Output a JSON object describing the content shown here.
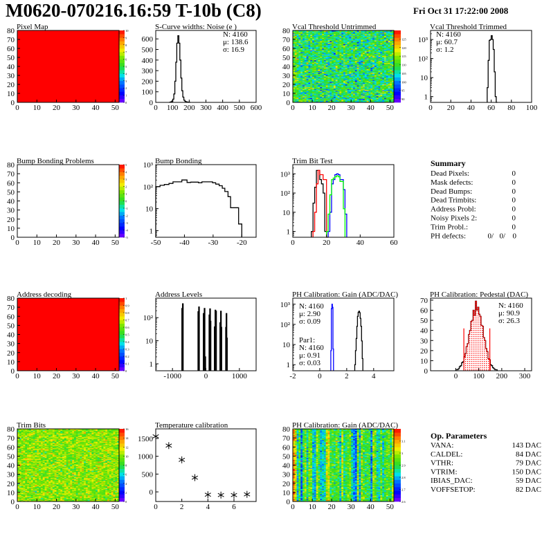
{
  "header": {
    "title": "M0620-070216.16:59 T-10b (C8)",
    "date": "Fri Oct 31 17:22:00 2008"
  },
  "colors": {
    "black": "#000000",
    "red": "#ff0000",
    "blue": "#0000ff",
    "green": "#00ff00"
  },
  "chart_data": [
    {
      "type": "heatmap",
      "title": "Pixel Map",
      "xlim": [
        0,
        52
      ],
      "ylim": [
        0,
        80
      ],
      "xticks": [
        0,
        10,
        20,
        30,
        40,
        50
      ],
      "yticks": [
        0,
        10,
        20,
        30,
        40,
        50,
        60,
        70,
        80
      ],
      "zlim": [
        0,
        10
      ],
      "zticks": [
        0,
        1,
        2,
        3,
        4,
        5,
        6,
        7,
        8,
        9,
        10
      ],
      "uniform_value": 10
    },
    {
      "type": "bar",
      "title": "S-Curve widths: Noise (e )",
      "xlim": [
        0,
        600
      ],
      "ylim": [
        0,
        680
      ],
      "log_y": false,
      "xticks": [
        0,
        100,
        200,
        300,
        400,
        500,
        600
      ],
      "yticks": [
        0,
        100,
        200,
        300,
        400,
        500,
        600
      ],
      "ytick_labels": [
        "0",
        "100",
        "200",
        "300",
        "400",
        "500",
        "600"
      ],
      "series": [
        {
          "color": "#000000",
          "x_start": 84,
          "bin_width": 6,
          "values": [
            2,
            5,
            12,
            30,
            80,
            200,
            380,
            560,
            630,
            560,
            400,
            230,
            110,
            50,
            20,
            10,
            5,
            3,
            2,
            1
          ]
        }
      ],
      "stats": [
        {
          "text": "N: 4160"
        },
        {
          "text": "μ: 138.6"
        },
        {
          "text": "σ: 16.9"
        }
      ]
    },
    {
      "type": "heatmap",
      "title": "Vcal Threshold Untrimmed",
      "xlim": [
        0,
        52
      ],
      "ylim": [
        0,
        80
      ],
      "xticks": [
        0,
        10,
        20,
        30,
        40,
        50
      ],
      "yticks": [
        0,
        10,
        20,
        30,
        40,
        50,
        60,
        70,
        80
      ],
      "zlim": [
        88,
        130
      ],
      "zticks": [
        90,
        95,
        100,
        105,
        110,
        115,
        120,
        125
      ],
      "typical_value": 108,
      "variation": 5
    },
    {
      "type": "bar",
      "title": "Vcal Threshold Trimmed",
      "xlim": [
        0,
        100
      ],
      "ylim": [
        0.5,
        3000
      ],
      "log_y": true,
      "xticks": [
        0,
        20,
        40,
        60,
        80,
        100
      ],
      "yticks": [
        1,
        10,
        100,
        1000
      ],
      "ytick_labels": [
        "1",
        "10",
        "10²",
        "10³"
      ],
      "series": [
        {
          "color": "#000000",
          "x_start": 56,
          "bin_width": 1,
          "values": [
            3,
            80,
            900,
            1000,
            1600,
            1000,
            300,
            20,
            1,
            0
          ]
        }
      ],
      "stats": [
        {
          "text": "N: 4160"
        },
        {
          "text": "μ: 60.7"
        },
        {
          "text": "σ:  1.2"
        }
      ]
    },
    {
      "type": "heatmap",
      "title": "Bump Bonding Problems",
      "xlim": [
        0,
        52
      ],
      "ylim": [
        0,
        80
      ],
      "xticks": [
        0,
        10,
        20,
        30,
        40,
        50
      ],
      "yticks": [
        0,
        10,
        20,
        30,
        40,
        50,
        60,
        70,
        80
      ],
      "zlim": [
        -5,
        5
      ],
      "zticks": [
        -5,
        -4,
        -3,
        -2,
        -1,
        0,
        1,
        2,
        3,
        4,
        5
      ]
    },
    {
      "type": "bar",
      "title": "Bump Bonding",
      "xlim": [
        -50,
        -15
      ],
      "ylim": [
        0.5,
        1000
      ],
      "log_y": true,
      "xticks": [
        -50,
        -40,
        -30,
        -20
      ],
      "yticks": [
        1,
        10,
        100,
        1000
      ],
      "ytick_labels": [
        "1",
        "10",
        "10²",
        "10³"
      ],
      "series": [
        {
          "color": "#000000",
          "edges": [
            -50,
            -48.5,
            -47,
            -45.4,
            -44,
            -40.9,
            -39.1,
            -37.8,
            -35.1,
            -33.9,
            -30.2,
            -29.1,
            -27.9,
            -26.8,
            -25.9,
            -24.8,
            -23.9,
            -21.1,
            -20
          ],
          "values": [
            100,
            115,
            125,
            140,
            165,
            200,
            155,
            160,
            150,
            165,
            150,
            130,
            110,
            85,
            60,
            35,
            11,
            2
          ]
        }
      ]
    },
    {
      "type": "bar",
      "title": "Trim Bit Test",
      "xlim": [
        0,
        60
      ],
      "ylim": [
        0.5,
        3000
      ],
      "log_y": true,
      "xticks": [
        0,
        20,
        40,
        60
      ],
      "yticks": [
        1,
        10,
        100,
        1000
      ],
      "ytick_labels": [
        "1",
        "10",
        "10²",
        "10³"
      ],
      "series": [
        {
          "color": "#000000",
          "x_start": 11,
          "bin_width": 1,
          "values": [
            1,
            30,
            200,
            1500,
            1500,
            500,
            300,
            100,
            1
          ]
        },
        {
          "color": "#ff0000",
          "x_start": 12,
          "bin_width": 1,
          "values": [
            1,
            10,
            300,
            1500,
            900,
            900,
            500,
            500,
            0
          ]
        },
        {
          "color": "#0000ff",
          "x_start": 21,
          "bin_width": 1,
          "values": [
            1,
            10,
            300,
            500,
            900,
            1000,
            900,
            500,
            500,
            150,
            8
          ]
        },
        {
          "color": "#00ff00",
          "x_start": 20,
          "bin_width": 1,
          "values": [
            1,
            8,
            80,
            500,
            600,
            700,
            800,
            700,
            400,
            400,
            15
          ]
        }
      ]
    },
    {
      "type": "heatmap",
      "title": "Address decoding",
      "xlim": [
        0,
        52
      ],
      "ylim": [
        0,
        80
      ],
      "xticks": [
        0,
        10,
        20,
        30,
        40,
        50
      ],
      "yticks": [
        0,
        10,
        20,
        30,
        40,
        50,
        60,
        70,
        80
      ],
      "zlim": [
        0,
        1
      ],
      "zticks": [
        0,
        0.1,
        0.2,
        0.3,
        0.4,
        0.5,
        0.6,
        0.7,
        0.8,
        0.9,
        1
      ],
      "uniform_value": 1
    },
    {
      "type": "bar",
      "title": "Address Levels",
      "xlim": [
        -1500,
        1500
      ],
      "ylim": [
        0.5,
        700
      ],
      "log_y": true,
      "xticks": [
        -1000,
        0,
        1000
      ],
      "yticks": [
        1,
        10,
        100
      ],
      "ytick_labels": [
        "1",
        "10",
        "10²"
      ],
      "spike_width": 20,
      "spikes": [
        [
          -710,
          250
        ],
        [
          -690,
          400
        ],
        [
          -228,
          180
        ],
        [
          -207,
          290
        ],
        [
          -69,
          150
        ],
        [
          -41,
          250
        ],
        [
          -20,
          2
        ],
        [
          103,
          130
        ],
        [
          124,
          240
        ],
        [
          138,
          70
        ],
        [
          262,
          40
        ],
        [
          283,
          210
        ],
        [
          303,
          190
        ],
        [
          428,
          60
        ],
        [
          448,
          190
        ],
        [
          462,
          38
        ],
        [
          600,
          38
        ],
        [
          614,
          150
        ],
        [
          628,
          13
        ]
      ]
    },
    {
      "type": "bar",
      "title": "PH Calibration: Gain (ADC/DAC)",
      "xlim": [
        -2,
        5.5
      ],
      "ylim": [
        0.5,
        2000
      ],
      "log_y": true,
      "xticks": [
        -2,
        0,
        2,
        4
      ],
      "yticks": [
        1,
        10,
        100,
        1000
      ],
      "ytick_labels": [
        "1",
        "10",
        "10²",
        "10³"
      ],
      "series": [
        {
          "color": "#000000",
          "x_start": 2.6,
          "bin_width": 0.05,
          "values": [
            1,
            5,
            20,
            80,
            250,
            400,
            450,
            380,
            200,
            80,
            15,
            2
          ]
        },
        {
          "color": "#0000ff",
          "x_start": 0.82,
          "bin_width": 0.04,
          "values": [
            5,
            600,
            1000,
            700,
            6
          ]
        }
      ],
      "stats": [
        {
          "text": "N: 4160"
        },
        {
          "text": "μ: 2.90"
        },
        {
          "text": "σ: 0.09"
        }
      ],
      "stats2": [
        {
          "text": "Par1:"
        },
        {
          "text": "N: 4160"
        },
        {
          "text": "μ: 0.91"
        },
        {
          "text": "σ: 0.03"
        }
      ]
    },
    {
      "type": "bar",
      "title": "PH Calibration: Pedestal (DAC)",
      "xlim": [
        -110,
        330
      ],
      "ylim": [
        0,
        72
      ],
      "log_y": false,
      "xticks": [
        0,
        100,
        200,
        300
      ],
      "yticks": [
        0,
        10,
        20,
        30,
        40,
        50,
        60,
        70
      ],
      "ytick_labels": [
        "0",
        "10",
        "20",
        "30",
        "40",
        "50",
        "60",
        "70"
      ],
      "series": [
        {
          "color": "#000000",
          "x_start": 0,
          "bin_width": 5,
          "values": [
            1,
            1,
            2,
            4,
            5,
            8,
            9,
            14,
            17,
            24,
            27,
            36,
            40,
            49,
            50,
            60,
            55,
            69,
            60,
            63,
            56,
            54,
            45,
            44,
            33,
            30,
            22,
            19,
            12,
            11,
            6,
            5,
            3,
            2,
            1,
            1
          ]
        },
        {
          "color": "#ff0000",
          "fill": "dotted",
          "x_start": 35,
          "bin_width": 5,
          "values": [
            13,
            17,
            24,
            27,
            36,
            40,
            49,
            50,
            60,
            55,
            69,
            60,
            63,
            56,
            54,
            45,
            44,
            33,
            30,
            22,
            19,
            12,
            11
          ]
        }
      ],
      "cut_lines": {
        "color": "#ff0000",
        "x": [
          35,
          148
        ],
        "height": 42
      },
      "stats": [
        {
          "text": "N: 4160",
          "color": "#000000"
        },
        {
          "text": "μ: 90.9",
          "color": "#ff0000"
        },
        {
          "text": "σ: 26.3",
          "color": "#ff0000"
        }
      ]
    },
    {
      "type": "heatmap",
      "title": "Trim Bits",
      "xlim": [
        0,
        52
      ],
      "ylim": [
        0,
        80
      ],
      "xticks": [
        0,
        10,
        20,
        30,
        40,
        50
      ],
      "yticks": [
        0,
        10,
        20,
        30,
        40,
        50,
        60,
        70,
        80
      ],
      "zlim": [
        0,
        16
      ],
      "zticks": [
        0,
        2,
        4,
        6,
        8,
        10,
        12,
        14,
        16
      ],
      "typical_value": 10,
      "variation": 1.3
    },
    {
      "type": "scatter",
      "title": "Temperature calibration",
      "xlim": [
        0,
        7.7
      ],
      "ylim": [
        -270,
        1770
      ],
      "xticks": [
        0,
        2,
        4,
        6
      ],
      "yticks": [
        0,
        500,
        1000,
        1500
      ],
      "ytick_labels": [
        "0",
        "500",
        "1000",
        "1500"
      ],
      "marker": "asterisk",
      "points": [
        [
          0,
          1560
        ],
        [
          1,
          1300
        ],
        [
          2,
          900
        ],
        [
          3,
          400
        ],
        [
          4,
          -80
        ],
        [
          5,
          -90
        ],
        [
          6,
          -90
        ],
        [
          7,
          -70
        ]
      ]
    },
    {
      "type": "heatmap",
      "title": "PH Calibration: Gain (ADC/DAC)",
      "xlim": [
        0,
        52
      ],
      "ylim": [
        0,
        80
      ],
      "xticks": [
        0,
        10,
        20,
        30,
        40,
        50
      ],
      "yticks": [
        0,
        10,
        20,
        30,
        40,
        50,
        60,
        70,
        80
      ],
      "zlim": [
        2.6,
        3.2
      ],
      "zticks": [
        2.6,
        2.7,
        2.8,
        2.9,
        3,
        3.1
      ],
      "typical_value": 2.9,
      "variation": 0.05
    }
  ],
  "summary": {
    "title": "Summary",
    "items": [
      {
        "label": "Dead Pixels:",
        "value": "0"
      },
      {
        "label": "Mask defects:",
        "value": "0"
      },
      {
        "label": "Dead Bumps:",
        "value": "0"
      },
      {
        "label": "Dead Trimbits:",
        "value": "0"
      },
      {
        "label": "Address Probl:",
        "value": "0"
      },
      {
        "label": "Noisy Pixels 2:",
        "value": "0"
      },
      {
        "label": "Trim Probl.:",
        "value": "0"
      }
    ],
    "ph_defects": {
      "label": "PH defects:",
      "values": [
        {
          "text": "0/",
          "color": "#000000"
        },
        {
          "text": "0/",
          "color": "#ff0000"
        },
        {
          "text": "0",
          "color": "#0000ff"
        }
      ]
    }
  },
  "op_parameters": {
    "title": "Op. Parameters",
    "items": [
      {
        "label": "VANA:",
        "value": "143 DAC"
      },
      {
        "label": "CALDEL:",
        "value": "84 DAC"
      },
      {
        "label": "VTHR:",
        "value": "79 DAC"
      },
      {
        "label": "VTRIM:",
        "value": "150 DAC"
      },
      {
        "label": "IBIAS_DAC:",
        "value": "59 DAC"
      },
      {
        "label": "VOFFSETOP:",
        "value": "82 DAC"
      }
    ]
  }
}
